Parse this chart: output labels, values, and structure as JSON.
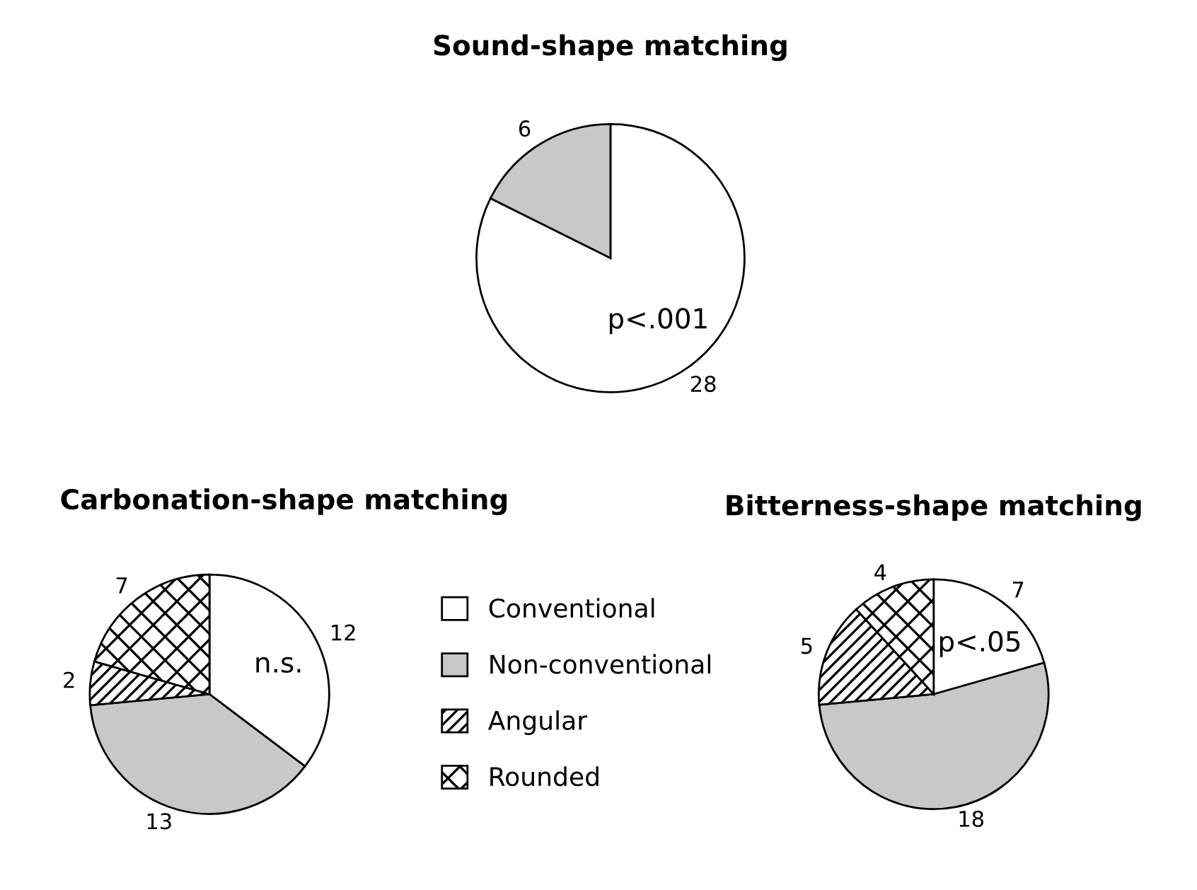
{
  "chart_data": [
    {
      "type": "pie",
      "title": "Sound-shape matching",
      "categories": [
        null,
        null
      ],
      "values": [
        28,
        6
      ],
      "colors": [
        "#ffffff",
        "#c8c8c8"
      ],
      "data_labels": true,
      "annotations": [
        "p<.001"
      ]
    },
    {
      "type": "pie",
      "title": "Carbonation-shape matching",
      "categories": [
        "Conventional",
        "Non-conventional",
        "Angular",
        "Rounded"
      ],
      "values": [
        12,
        13,
        2,
        7
      ],
      "colors": [
        "#ffffff",
        "#c8c8c8",
        "#000000",
        "#000000"
      ],
      "data_labels": true,
      "annotations": [
        "n.s."
      ],
      "legend": "right"
    },
    {
      "type": "pie",
      "title": "Bitterness-shape matching",
      "categories": [
        null,
        null,
        null,
        null
      ],
      "values": [
        7,
        18,
        5,
        4
      ],
      "colors": [
        "#ffffff",
        "#c8c8c8",
        "#000000",
        "#000000"
      ],
      "data_labels": true,
      "annotations": [
        "p<.05"
      ]
    }
  ]
}
